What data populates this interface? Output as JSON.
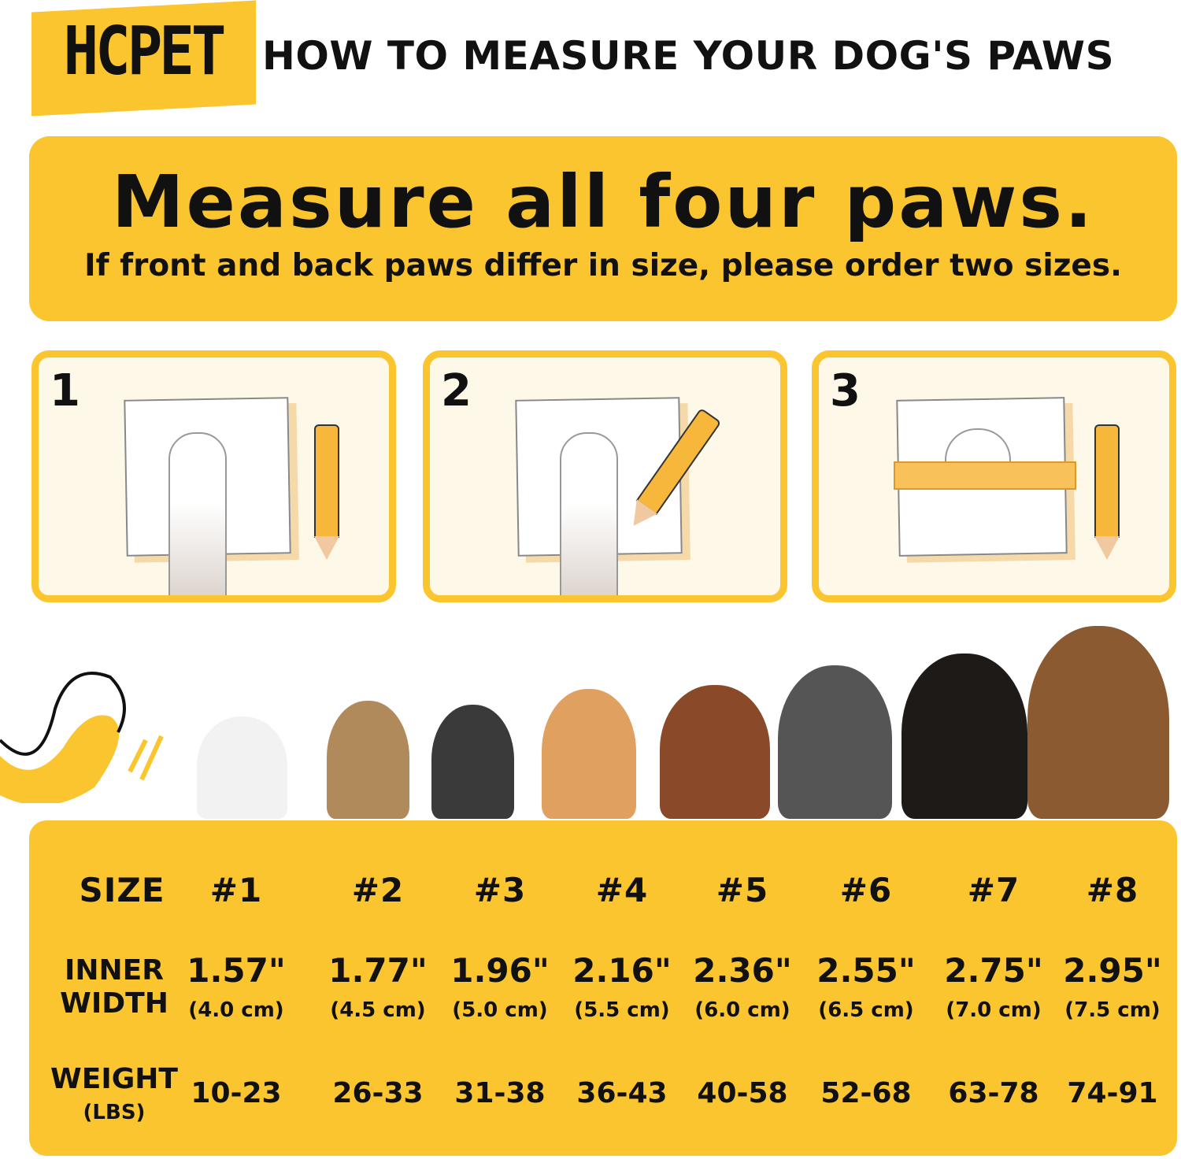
{
  "header": {
    "brand": "HCPET",
    "title": "HOW TO MEASURE YOUR DOG'S PAWS"
  },
  "banner": {
    "heading": "Measure all four paws.",
    "subheading": "If front and back paws differ in size, please order two sizes."
  },
  "steps": [
    {
      "number": "1"
    },
    {
      "number": "2"
    },
    {
      "number": "3"
    }
  ],
  "colors": {
    "accent": "#FBC530",
    "panel_bg": "#FDF8E8",
    "text": "#111111"
  },
  "table": {
    "size_label": "SIZE",
    "width_label": "INNER WIDTH",
    "weight_label": "WEIGHT",
    "weight_unit": "(LBS)",
    "sizes": [
      "#1",
      "#2",
      "#3",
      "#4",
      "#5",
      "#6",
      "#7",
      "#8"
    ],
    "inner_width_in": [
      "1.57\"",
      "1.77\"",
      "1.96\"",
      "2.16\"",
      "2.36\"",
      "2.55\"",
      "2.75\"",
      "2.95\""
    ],
    "inner_width_cm": [
      "(4.0 cm)",
      "(4.5 cm)",
      "(5.0 cm)",
      "(5.5 cm)",
      "(6.0 cm)",
      "(6.5 cm)",
      "(7.0 cm)",
      "(7.5 cm)"
    ],
    "weight_lbs": [
      "10-23",
      "26-33",
      "31-38",
      "36-43",
      "40-58",
      "52-68",
      "63-78",
      "74-91"
    ]
  }
}
